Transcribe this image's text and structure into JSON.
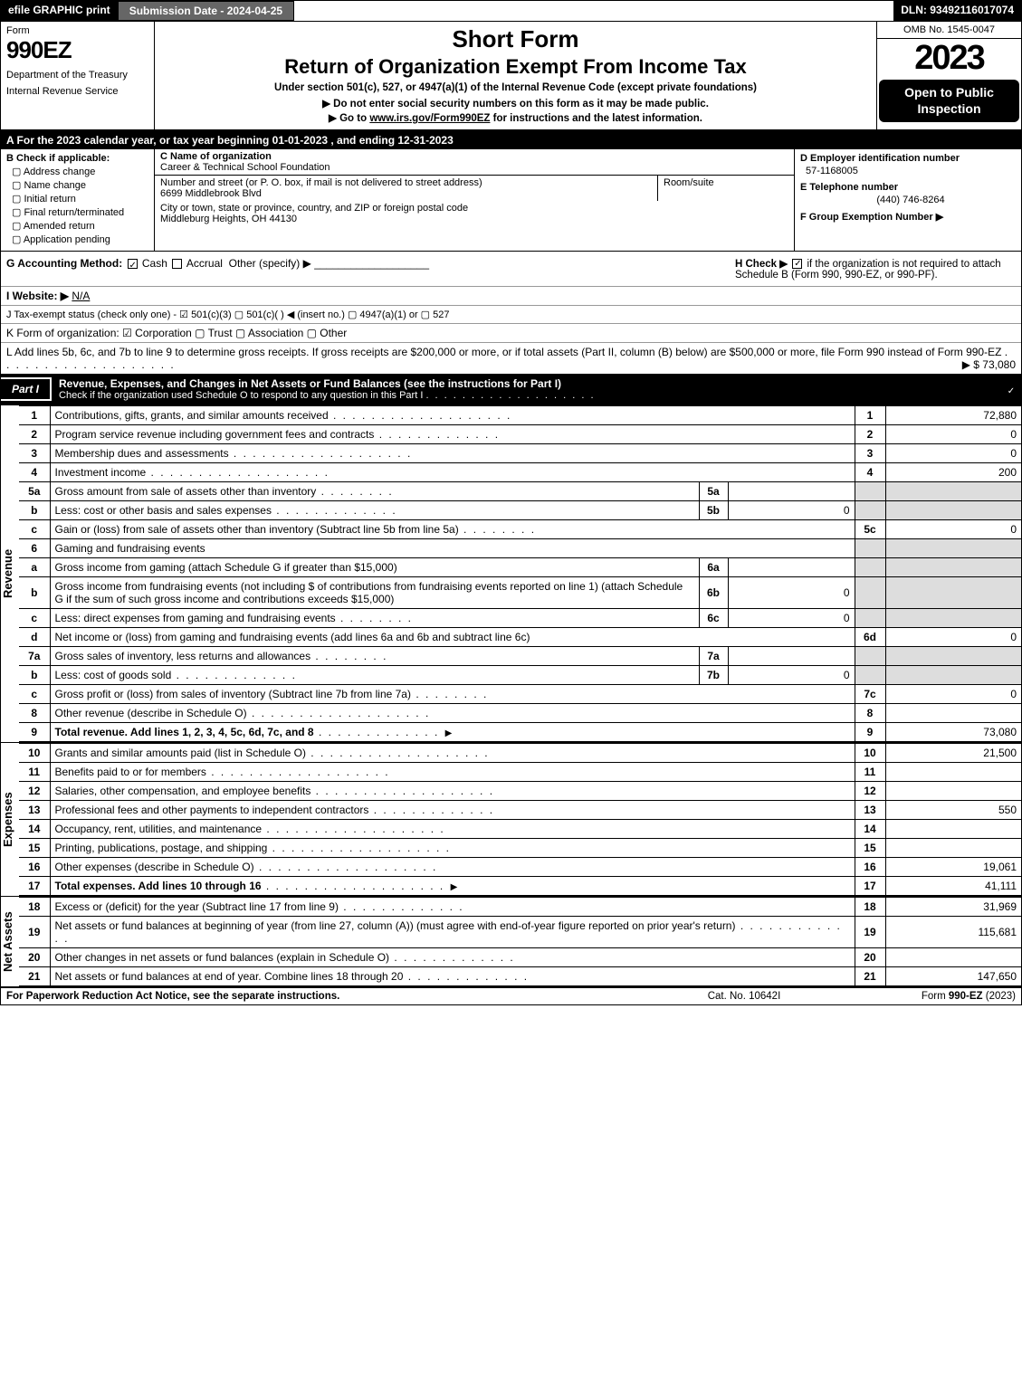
{
  "topbar": {
    "efile": "efile GRAPHIC print",
    "submission": "Submission Date - 2024-04-25",
    "dln": "DLN: 93492116017074"
  },
  "header": {
    "form_label": "Form",
    "form_num": "990EZ",
    "dept1": "Department of the Treasury",
    "dept2": "Internal Revenue Service",
    "short": "Short Form",
    "title": "Return of Organization Exempt From Income Tax",
    "under": "Under section 501(c), 527, or 4947(a)(1) of the Internal Revenue Code (except private foundations)",
    "donot": "▶ Do not enter social security numbers on this form as it may be made public.",
    "goto_pre": "▶ Go to ",
    "goto_link": "www.irs.gov/Form990EZ",
    "goto_post": " for instructions and the latest information.",
    "omb": "OMB No. 1545-0047",
    "year": "2023",
    "open": "Open to Public Inspection"
  },
  "row_a": "A  For the 2023 calendar year, or tax year beginning 01-01-2023 , and ending 12-31-2023",
  "col_b": {
    "head": "B  Check if applicable:",
    "items": [
      "Address change",
      "Name change",
      "Initial return",
      "Final return/terminated",
      "Amended return",
      "Application pending"
    ]
  },
  "col_c": {
    "name_lbl": "C Name of organization",
    "name": "Career & Technical School Foundation",
    "addr_lbl": "Number and street (or P. O. box, if mail is not delivered to street address)",
    "addr": "6699 Middlebrook Blvd",
    "room_lbl": "Room/suite",
    "city_lbl": "City or town, state or province, country, and ZIP or foreign postal code",
    "city": "Middleburg Heights, OH  44130"
  },
  "col_d": {
    "d_lbl": "D Employer identification number",
    "d_val": "57-1168005",
    "e_lbl": "E Telephone number",
    "e_val": "(440) 746-8264",
    "f_lbl": "F Group Exemption Number  ▶"
  },
  "row_g": {
    "g": "G Accounting Method:",
    "cash": "Cash",
    "accrual": "Accrual",
    "other": "Other (specify) ▶",
    "h": "H  Check ▶",
    "h2": "if the organization is not required to attach Schedule B (Form 990, 990-EZ, or 990-PF)."
  },
  "row_i": {
    "lbl": "I Website: ▶",
    "val": "N/A"
  },
  "row_j": "J Tax-exempt status (check only one) - ☑ 501(c)(3) ▢ 501(c)(  ) ◀ (insert no.) ▢ 4947(a)(1) or ▢ 527",
  "row_k": "K Form of organization:  ☑ Corporation  ▢ Trust  ▢ Association  ▢ Other",
  "row_l": {
    "text": "L Add lines 5b, 6c, and 7b to line 9 to determine gross receipts. If gross receipts are $200,000 or more, or if total assets (Part II, column (B) below) are $500,000 or more, file Form 990 instead of Form 990-EZ",
    "amt": "▶ $ 73,080"
  },
  "part1": {
    "tab": "Part I",
    "title": "Revenue, Expenses, and Changes in Net Assets or Fund Balances (see the instructions for Part I)",
    "sub": "Check if the organization used Schedule O to respond to any question in this Part I"
  },
  "lines": {
    "l1": {
      "n": "1",
      "d": "Contributions, gifts, grants, and similar amounts received",
      "rn": "1",
      "rv": "72,880"
    },
    "l2": {
      "n": "2",
      "d": "Program service revenue including government fees and contracts",
      "rn": "2",
      "rv": "0"
    },
    "l3": {
      "n": "3",
      "d": "Membership dues and assessments",
      "rn": "3",
      "rv": "0"
    },
    "l4": {
      "n": "4",
      "d": "Investment income",
      "rn": "4",
      "rv": "200"
    },
    "l5a": {
      "n": "5a",
      "d": "Gross amount from sale of assets other than inventory",
      "in": "5a",
      "iv": ""
    },
    "l5b": {
      "n": "b",
      "d": "Less: cost or other basis and sales expenses",
      "in": "5b",
      "iv": "0"
    },
    "l5c": {
      "n": "c",
      "d": "Gain or (loss) from sale of assets other than inventory (Subtract line 5b from line 5a)",
      "rn": "5c",
      "rv": "0"
    },
    "l6": {
      "n": "6",
      "d": "Gaming and fundraising events"
    },
    "l6a": {
      "n": "a",
      "d": "Gross income from gaming (attach Schedule G if greater than $15,000)",
      "in": "6a",
      "iv": ""
    },
    "l6b": {
      "n": "b",
      "d": "Gross income from fundraising events (not including $                    of contributions from fundraising events reported on line 1) (attach Schedule G if the sum of such gross income and contributions exceeds $15,000)",
      "in": "6b",
      "iv": "0"
    },
    "l6c": {
      "n": "c",
      "d": "Less: direct expenses from gaming and fundraising events",
      "in": "6c",
      "iv": "0"
    },
    "l6d": {
      "n": "d",
      "d": "Net income or (loss) from gaming and fundraising events (add lines 6a and 6b and subtract line 6c)",
      "rn": "6d",
      "rv": "0"
    },
    "l7a": {
      "n": "7a",
      "d": "Gross sales of inventory, less returns and allowances",
      "in": "7a",
      "iv": ""
    },
    "l7b": {
      "n": "b",
      "d": "Less: cost of goods sold",
      "in": "7b",
      "iv": "0"
    },
    "l7c": {
      "n": "c",
      "d": "Gross profit or (loss) from sales of inventory (Subtract line 7b from line 7a)",
      "rn": "7c",
      "rv": "0"
    },
    "l8": {
      "n": "8",
      "d": "Other revenue (describe in Schedule O)",
      "rn": "8",
      "rv": ""
    },
    "l9": {
      "n": "9",
      "d": "Total revenue. Add lines 1, 2, 3, 4, 5c, 6d, 7c, and 8",
      "rn": "9",
      "rv": "73,080"
    },
    "l10": {
      "n": "10",
      "d": "Grants and similar amounts paid (list in Schedule O)",
      "rn": "10",
      "rv": "21,500"
    },
    "l11": {
      "n": "11",
      "d": "Benefits paid to or for members",
      "rn": "11",
      "rv": ""
    },
    "l12": {
      "n": "12",
      "d": "Salaries, other compensation, and employee benefits",
      "rn": "12",
      "rv": ""
    },
    "l13": {
      "n": "13",
      "d": "Professional fees and other payments to independent contractors",
      "rn": "13",
      "rv": "550"
    },
    "l14": {
      "n": "14",
      "d": "Occupancy, rent, utilities, and maintenance",
      "rn": "14",
      "rv": ""
    },
    "l15": {
      "n": "15",
      "d": "Printing, publications, postage, and shipping",
      "rn": "15",
      "rv": ""
    },
    "l16": {
      "n": "16",
      "d": "Other expenses (describe in Schedule O)",
      "rn": "16",
      "rv": "19,061"
    },
    "l17": {
      "n": "17",
      "d": "Total expenses. Add lines 10 through 16",
      "rn": "17",
      "rv": "41,111"
    },
    "l18": {
      "n": "18",
      "d": "Excess or (deficit) for the year (Subtract line 17 from line 9)",
      "rn": "18",
      "rv": "31,969"
    },
    "l19": {
      "n": "19",
      "d": "Net assets or fund balances at beginning of year (from line 27, column (A)) (must agree with end-of-year figure reported on prior year's return)",
      "rn": "19",
      "rv": "115,681"
    },
    "l20": {
      "n": "20",
      "d": "Other changes in net assets or fund balances (explain in Schedule O)",
      "rn": "20",
      "rv": ""
    },
    "l21": {
      "n": "21",
      "d": "Net assets or fund balances at end of year. Combine lines 18 through 20",
      "rn": "21",
      "rv": "147,650"
    }
  },
  "vlabels": {
    "rev": "Revenue",
    "exp": "Expenses",
    "na": "Net Assets"
  },
  "footer": {
    "l": "For Paperwork Reduction Act Notice, see the separate instructions.",
    "c": "Cat. No. 10642I",
    "r_pre": "Form ",
    "r_b": "990-EZ",
    "r_post": " (2023)"
  },
  "style": {
    "bg": "#ffffff",
    "fg": "#000000",
    "shade": "#dddddd",
    "font_body": 12,
    "font_title": 22,
    "font_year": 38
  }
}
